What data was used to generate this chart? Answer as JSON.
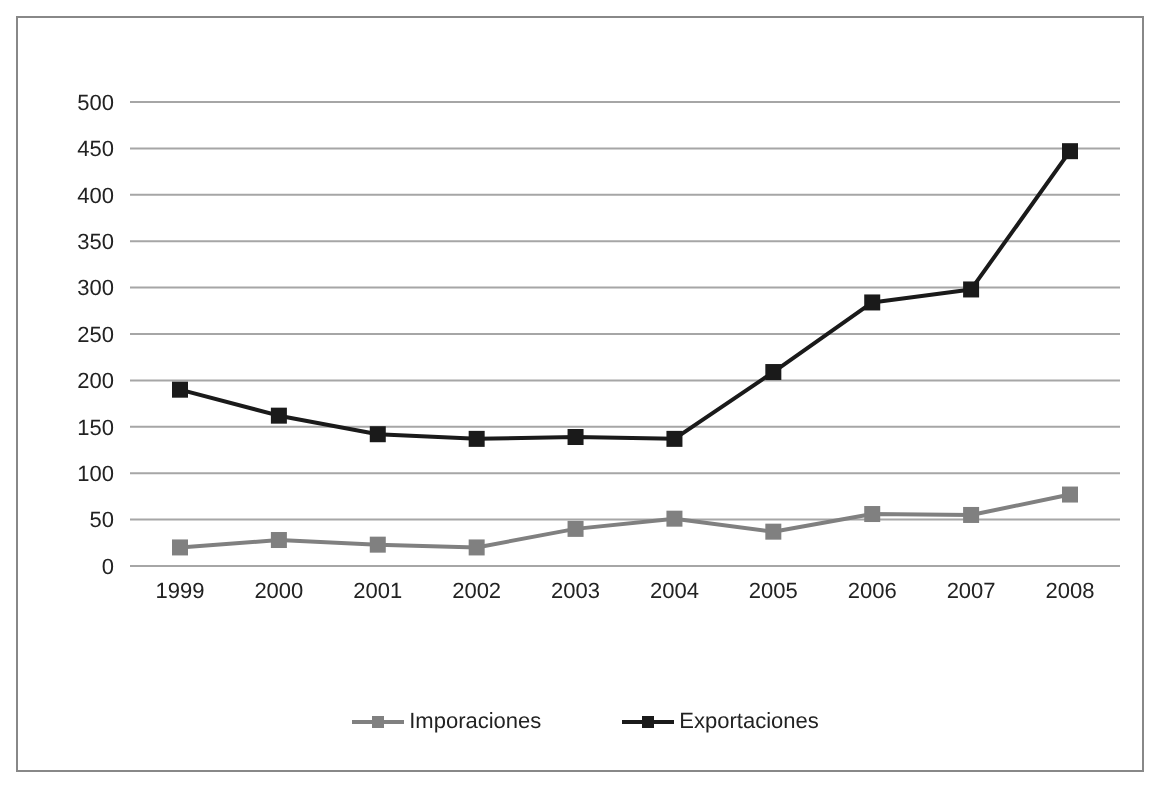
{
  "chart_data": {
    "type": "line",
    "categories": [
      "1999",
      "2000",
      "2001",
      "2002",
      "2003",
      "2004",
      "2005",
      "2006",
      "2007",
      "2008"
    ],
    "series": [
      {
        "name": "Imporaciones",
        "color": "#808080",
        "values": [
          20,
          28,
          23,
          20,
          40,
          51,
          37,
          56,
          55,
          77
        ]
      },
      {
        "name": "Exportaciones",
        "color": "#1a1a1a",
        "values": [
          190,
          162,
          142,
          137,
          139,
          137,
          209,
          284,
          298,
          447
        ]
      }
    ],
    "ylim": [
      0,
      500
    ],
    "yticks": [
      0,
      50,
      100,
      150,
      200,
      250,
      300,
      350,
      400,
      450,
      500
    ],
    "grid": "y",
    "legend": "bottom",
    "marker": "square",
    "line_style": "solid"
  }
}
